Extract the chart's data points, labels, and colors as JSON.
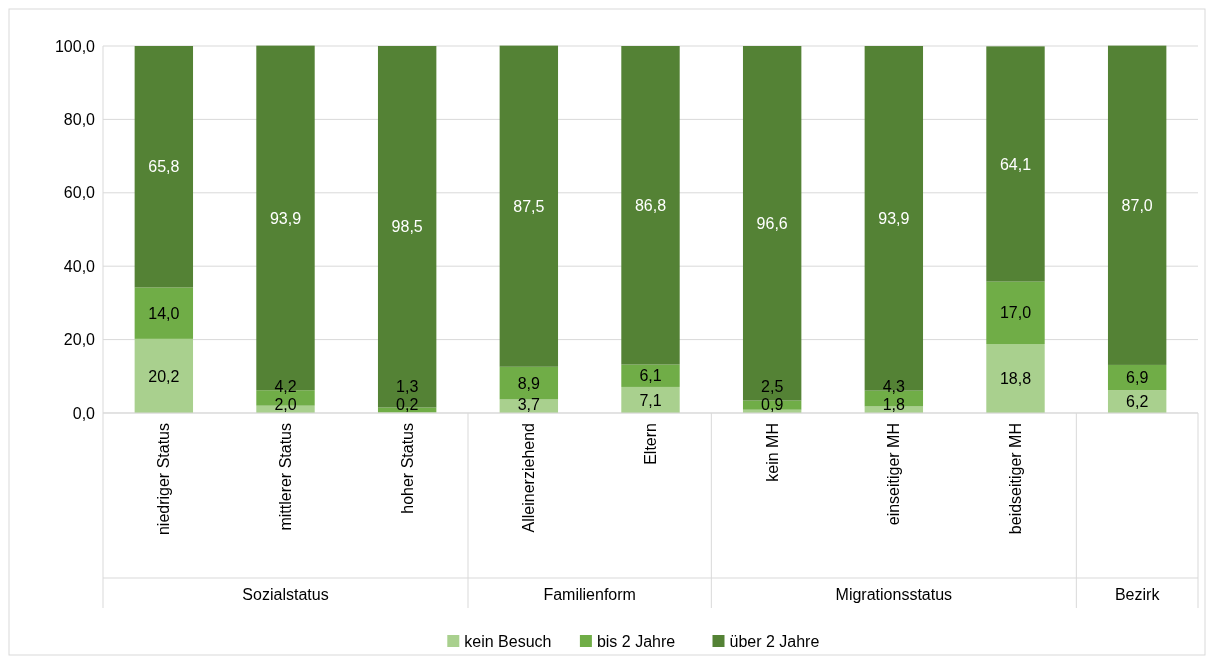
{
  "chart_data": {
    "type": "bar",
    "stacked": true,
    "categories": [
      "niedriger Status",
      "mittlerer Status",
      "hoher Status",
      "Alleinerziehend",
      "Eltern",
      "kein MH",
      "einseitiger MH",
      "beidseitiger MH",
      null
    ],
    "series": [
      {
        "name": "kein Besuch",
        "color": "#a9d08e",
        "values": [
          20.2,
          2.0,
          0.2,
          3.7,
          7.1,
          0.9,
          1.8,
          18.8,
          6.2
        ],
        "value_labels": [
          "20,2",
          "2,0",
          "0,2",
          "3,7",
          "7,1",
          "0,9",
          "1,8",
          "18,8",
          "6,2"
        ]
      },
      {
        "name": "bis 2 Jahre",
        "color": "#70ad47",
        "values": [
          14.0,
          4.2,
          1.3,
          8.9,
          6.1,
          2.5,
          4.3,
          17.0,
          6.9
        ],
        "value_labels": [
          "14,0",
          "4,2",
          "1,3",
          "8,9",
          "6,1",
          "2,5",
          "4,3",
          "17,0",
          "6,9"
        ]
      },
      {
        "name": "über 2 Jahre",
        "color": "#548235",
        "values": [
          65.8,
          93.9,
          98.5,
          87.5,
          86.8,
          96.6,
          93.9,
          64.1,
          87.0
        ],
        "value_labels": [
          "65,8",
          "93,9",
          "98,5",
          "87,5",
          "86,8",
          "96,6",
          "93,9",
          "64,1",
          "87,0"
        ]
      }
    ],
    "ylim": [
      0,
      100
    ],
    "yticks": [
      {
        "value": 0,
        "label": "0,0"
      },
      {
        "value": 20,
        "label": "20,0"
      },
      {
        "value": 40,
        "label": "40,0"
      },
      {
        "value": 60,
        "label": "60,0"
      },
      {
        "value": 80,
        "label": "80,0"
      },
      {
        "value": 100,
        "label": "100,0"
      }
    ],
    "grid": "y",
    "legend": "bottom",
    "annotations": [
      "Sozialstatus",
      "Familienform",
      "Migrationsstatus",
      "Bezirk"
    ]
  }
}
